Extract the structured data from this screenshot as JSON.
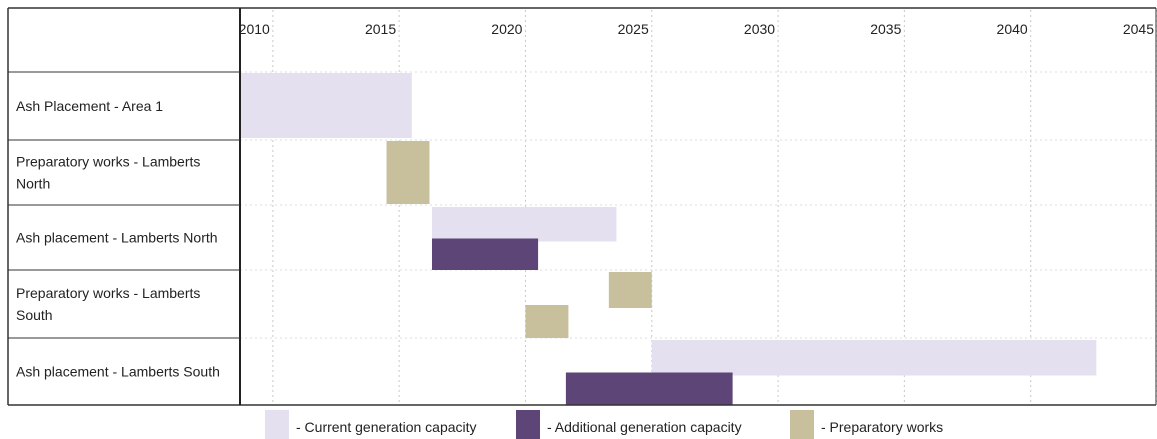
{
  "chart_data": {
    "type": "bar",
    "subtype": "gantt",
    "title": "",
    "xlabel": "",
    "ylabel": "",
    "xlim": [
      2008.7,
      2045
    ],
    "x_ticks": [
      2010,
      2015,
      2020,
      2025,
      2030,
      2035,
      2040,
      2045
    ],
    "grid": true,
    "legend_position": "bottom",
    "rows": [
      {
        "label_lines": [
          "Ash Placement  - Area 1"
        ]
      },
      {
        "label_lines": [
          "Preparatory works - Lamberts",
          "North"
        ]
      },
      {
        "label_lines": [
          "Ash placement  - Lamberts North"
        ]
      },
      {
        "label_lines": [
          "Preparatory works - Lamberts",
          "South"
        ]
      },
      {
        "label_lines": [
          "Ash placement  - Lamberts South"
        ]
      }
    ],
    "series": [
      {
        "name": "- Current generation capacity",
        "color": "#e4e0ef"
      },
      {
        "name": "- Additional generation capacity",
        "color": "#5e4577"
      },
      {
        "name": "- Preparatory works",
        "color": "#c8bf9c"
      }
    ],
    "tasks": [
      {
        "row": 0,
        "series": 0,
        "start": 2008.7,
        "end": 2015.5,
        "lane": "full"
      },
      {
        "row": 1,
        "series": 2,
        "start": 2014.5,
        "end": 2016.2,
        "lane": "full"
      },
      {
        "row": 2,
        "series": 0,
        "start": 2016.3,
        "end": 2023.6,
        "lane": "top"
      },
      {
        "row": 2,
        "series": 1,
        "start": 2016.3,
        "end": 2020.5,
        "lane": "bottom"
      },
      {
        "row": 3,
        "series": 2,
        "start": 2023.3,
        "end": 2025.0,
        "lane": "top"
      },
      {
        "row": 3,
        "series": 2,
        "start": 2020.0,
        "end": 2021.7,
        "lane": "bottom"
      },
      {
        "row": 4,
        "series": 0,
        "start": 2025.0,
        "end": 2042.6,
        "lane": "top"
      },
      {
        "row": 4,
        "series": 1,
        "start": 2021.6,
        "end": 2028.2,
        "lane": "bottom"
      }
    ]
  }
}
